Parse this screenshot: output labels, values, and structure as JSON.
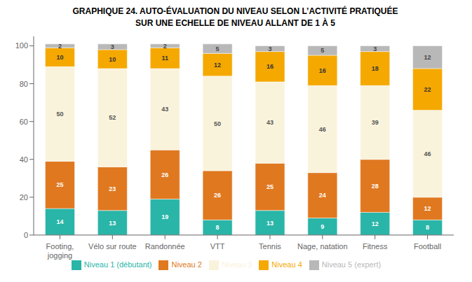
{
  "chart_data": {
    "type": "bar",
    "title": "GRAPHIQUE 24. AUTO-ÉVALUATION DU NIVEAU SELON L’ACTIVITÉ PRATIQUÉE\nSUR UNE ECHELLE DE NIVEAU ALLANT DE 1 À 5",
    "categories": [
      "Footing,\njogging",
      "Vélo sur route",
      "Randonnée",
      "VTT",
      "Tennis",
      "Nage, natation",
      "Fitness",
      "Football"
    ],
    "series": [
      {
        "name": "Niveau 1 (débutant)",
        "color": "#29b5a8",
        "values": [
          14,
          13,
          19,
          8,
          13,
          9,
          12,
          8
        ]
      },
      {
        "name": "Niveau 2",
        "color": "#e07820",
        "values": [
          25,
          23,
          26,
          26,
          25,
          24,
          28,
          12
        ]
      },
      {
        "name": "Niveau 3",
        "color": "#faf3dc",
        "values": [
          50,
          52,
          43,
          50,
          43,
          46,
          39,
          46
        ]
      },
      {
        "name": "Niveau 4",
        "color": "#f5a800",
        "values": [
          10,
          10,
          11,
          12,
          16,
          16,
          18,
          22
        ]
      },
      {
        "name": "Niveau 5 (expert)",
        "color": "#b8b8b8",
        "values": [
          2,
          3,
          2,
          5,
          3,
          5,
          3,
          12
        ]
      }
    ],
    "ylim": [
      0,
      105
    ],
    "yticks": [
      0,
      20,
      40,
      60,
      80,
      100
    ],
    "stacked": true,
    "data_labels": true,
    "grid": false,
    "legend": "bottom"
  }
}
